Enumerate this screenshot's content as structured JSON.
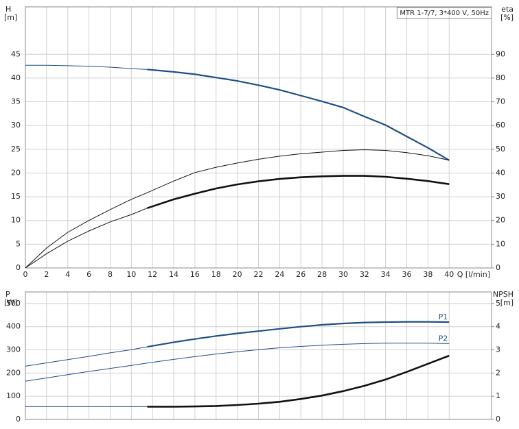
{
  "chart_data": [
    {
      "type": "line",
      "title": "MTR 1-7/7, 3*400 V, 50Hz",
      "ylabel": "H",
      "yunit": "[m]",
      "y2label": "eta",
      "y2unit": "[%]",
      "xlabel": "Q [l/min]",
      "x": [
        0,
        2,
        4,
        6,
        8,
        10,
        11.5,
        14,
        16,
        18,
        20,
        22,
        24,
        26,
        28,
        30,
        32,
        34,
        36,
        38,
        40
      ],
      "xlim": [
        0,
        44
      ],
      "xticks": [
        0,
        2,
        4,
        6,
        8,
        10,
        12,
        14,
        16,
        18,
        20,
        22,
        24,
        26,
        28,
        30,
        32,
        34,
        36,
        38,
        40
      ],
      "ylim": [
        0,
        55
      ],
      "yticks": [
        0,
        5,
        10,
        15,
        20,
        25,
        30,
        35,
        40,
        45
      ],
      "y2lim": [
        0,
        110
      ],
      "y2ticks": [
        0,
        10,
        20,
        30,
        40,
        50,
        60,
        70,
        80,
        90
      ],
      "grid": true,
      "series": [
        {
          "color": "#1f4e86",
          "width": 1,
          "values": [
            42.7,
            42.7,
            42.6,
            42.5,
            42.3,
            42.0,
            41.8,
            null,
            null,
            null,
            null,
            null,
            null,
            null,
            null,
            null,
            null,
            null,
            null,
            null,
            null
          ]
        },
        {
          "color": "#1f4e86",
          "width": 2.2,
          "values": [
            null,
            null,
            null,
            null,
            null,
            null,
            41.8,
            41.3,
            40.8,
            40.1,
            39.4,
            38.5,
            37.5,
            36.3,
            35.1,
            33.8,
            31.9,
            30.1,
            27.7,
            25.3,
            22.7
          ]
        },
        {
          "color": "#111111",
          "width": 1,
          "axis": "y2",
          "values": [
            0,
            8.4,
            15,
            20,
            24.6,
            28.9,
            31.7,
            36.6,
            40.2,
            42.4,
            44.2,
            45.8,
            47.1,
            48.1,
            48.8,
            49.5,
            49.8,
            49.5,
            48.6,
            47.3,
            45.4
          ]
        },
        {
          "color": "#111111",
          "width": 1,
          "axis": "y2",
          "values": [
            0,
            6,
            11.3,
            15.6,
            19.4,
            22.5,
            25.2,
            null,
            null,
            null,
            null,
            null,
            null,
            null,
            null,
            null,
            null,
            null,
            null,
            null,
            null
          ]
        },
        {
          "color": "#111111",
          "width": 2.6,
          "axis": "y2",
          "values": [
            null,
            null,
            null,
            null,
            null,
            null,
            25.2,
            28.9,
            31.3,
            33.5,
            35.2,
            36.5,
            37.5,
            38.2,
            38.6,
            38.8,
            38.8,
            38.4,
            37.6,
            36.6,
            35.3
          ]
        }
      ]
    },
    {
      "type": "line",
      "ylabel": "P",
      "yunit": "[W]",
      "y2label": "NPSH",
      "y2unit": "[m]",
      "x": [
        0,
        2,
        4,
        6,
        8,
        10,
        11.5,
        14,
        16,
        18,
        20,
        22,
        24,
        26,
        28,
        30,
        32,
        34,
        36,
        38,
        40
      ],
      "xlim": [
        0,
        44
      ],
      "ylim": [
        0,
        550
      ],
      "yticks": [
        0,
        100,
        200,
        300,
        400,
        500
      ],
      "y2lim": [
        0,
        5.5
      ],
      "y2ticks": [
        0,
        1,
        2,
        3,
        4,
        5
      ],
      "grid": true,
      "series": [
        {
          "color": "#1f4e86",
          "width": 1,
          "values": [
            230,
            244,
            258,
            272,
            287,
            301,
            313,
            null,
            null,
            null,
            null,
            null,
            null,
            null,
            null,
            null,
            null,
            null,
            null,
            null,
            null
          ]
        },
        {
          "name": "P1",
          "color": "#1f4e86",
          "width": 2.2,
          "values": [
            null,
            null,
            null,
            null,
            null,
            null,
            313,
            333,
            347,
            360,
            371,
            381,
            391,
            400,
            408,
            414,
            418,
            420,
            421,
            421,
            420
          ]
        },
        {
          "name": "P2",
          "color": "#1f4e86",
          "width": 1,
          "values": [
            165,
            179,
            193,
            207,
            220,
            233,
            243,
            259,
            271,
            282,
            292,
            301,
            309,
            315,
            320,
            324,
            327,
            329,
            329,
            329,
            327
          ]
        },
        {
          "color": "#1f4e86",
          "width": 1,
          "axis": "y2",
          "values": [
            0.55,
            0.55,
            0.55,
            0.55,
            0.55,
            0.55,
            0.55,
            null,
            null,
            null,
            null,
            null,
            null,
            null,
            null,
            null,
            null,
            null,
            null,
            null,
            null
          ]
        },
        {
          "color": "#111111",
          "width": 2.6,
          "axis": "y2",
          "values": [
            null,
            null,
            null,
            null,
            null,
            null,
            0.55,
            0.55,
            0.56,
            0.58,
            0.62,
            0.68,
            0.76,
            0.88,
            1.03,
            1.22,
            1.45,
            1.72,
            2.05,
            2.4,
            2.75
          ]
        }
      ]
    }
  ]
}
